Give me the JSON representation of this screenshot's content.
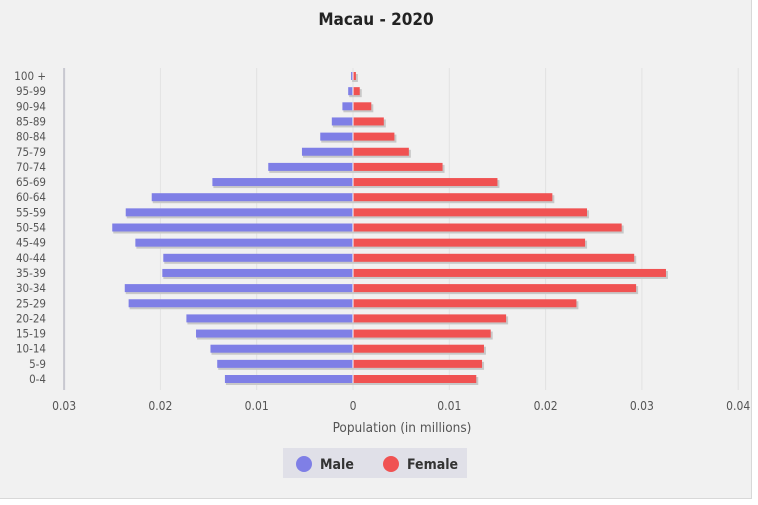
{
  "chart_data": {
    "type": "bar",
    "orientation": "horizontal-pyramid",
    "title": "Macau - 2020",
    "xlabel": "Population (in millions)",
    "xlim": [
      -0.03,
      0.04
    ],
    "x_tick_labels": [
      "0.03",
      "0.02",
      "0.01",
      "0",
      "0.01",
      "0.02",
      "0.03",
      "0.04"
    ],
    "x_tick_values": [
      -0.03,
      -0.02,
      -0.01,
      0,
      0.01,
      0.02,
      0.03,
      0.04
    ],
    "grid": "vertical",
    "legend_position": "bottom",
    "categories": [
      "100 +",
      "95-99",
      "90-94",
      "85-89",
      "80-84",
      "75-79",
      "70-74",
      "65-69",
      "60-64",
      "55-59",
      "50-54",
      "45-49",
      "40-44",
      "35-39",
      "30-34",
      "25-29",
      "20-24",
      "15-19",
      "10-14",
      "5-9",
      "0-4"
    ],
    "series": [
      {
        "name": "Male",
        "color": "#7f7fe6",
        "values": [
          0.0002,
          0.0005,
          0.0011,
          0.0022,
          0.0034,
          0.0053,
          0.0088,
          0.0146,
          0.0209,
          0.0236,
          0.025,
          0.0226,
          0.0197,
          0.0198,
          0.0237,
          0.0233,
          0.0173,
          0.0163,
          0.0148,
          0.0141,
          0.0133
        ]
      },
      {
        "name": "Female",
        "color": "#f05252",
        "values": [
          0.0003,
          0.0007,
          0.0019,
          0.0032,
          0.0043,
          0.0058,
          0.0093,
          0.015,
          0.0207,
          0.0243,
          0.0279,
          0.0241,
          0.0292,
          0.0325,
          0.0294,
          0.0232,
          0.0159,
          0.0143,
          0.0136,
          0.0134,
          0.0128
        ]
      }
    ]
  }
}
